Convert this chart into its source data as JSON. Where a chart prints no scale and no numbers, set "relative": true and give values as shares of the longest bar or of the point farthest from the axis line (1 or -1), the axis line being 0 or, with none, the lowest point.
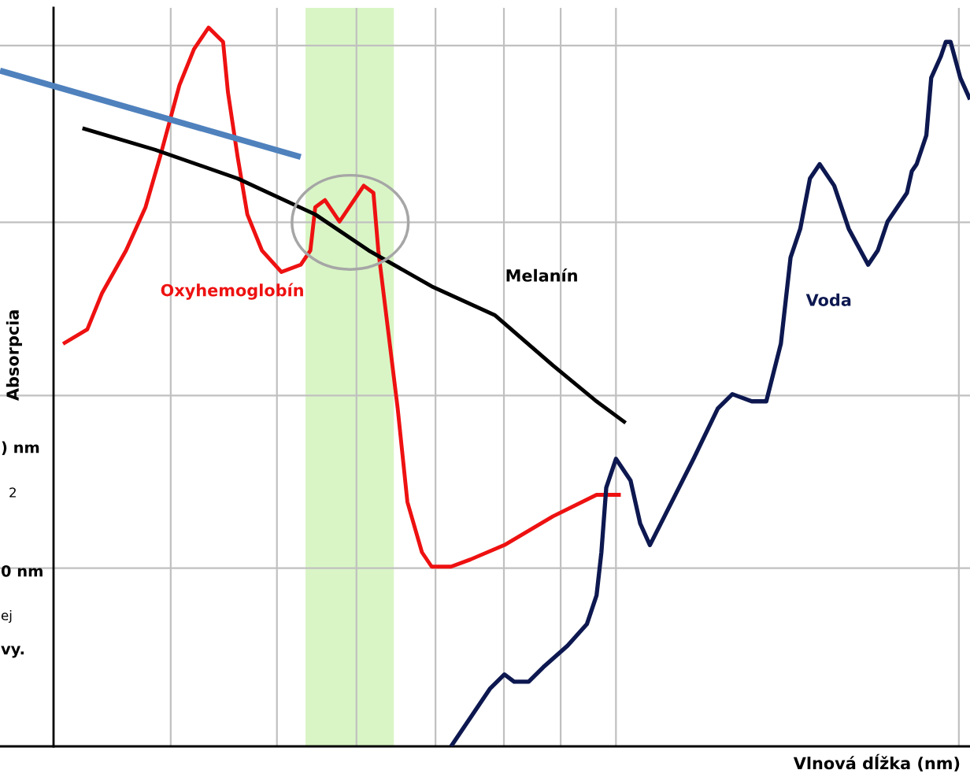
{
  "chart_data": {
    "type": "line",
    "relative": true,
    "xlabel": "Vlnová dĺžka (nm)",
    "ylabel": "Absorpcia",
    "categories": [
      null,
      null,
      null,
      null,
      null,
      null,
      null,
      null,
      null,
      null,
      null,
      null,
      null,
      null,
      null,
      null,
      null,
      null,
      null,
      null,
      null,
      null,
      null,
      null,
      null,
      null,
      null,
      null,
      null,
      null,
      null,
      null,
      null,
      null,
      null,
      null,
      null,
      null,
      null,
      null,
      null,
      null,
      null,
      null,
      null,
      null,
      null,
      null,
      null,
      null,
      null,
      null,
      null,
      null,
      null,
      null,
      null,
      null,
      null,
      null,
      null,
      null,
      null,
      null,
      null,
      null,
      null,
      null,
      null,
      null,
      null,
      null,
      null,
      null,
      null,
      null,
      null,
      null,
      null,
      null,
      null,
      null,
      null,
      null,
      null,
      null,
      null,
      null,
      null,
      null,
      null,
      null,
      null,
      null,
      null,
      null,
      null,
      null,
      null,
      null,
      null,
      null,
      null,
      null,
      null,
      null,
      null,
      null,
      null,
      null,
      null,
      null,
      null,
      null,
      null,
      null,
      null,
      null,
      null,
      null,
      null,
      null,
      null,
      null,
      null,
      null,
      null,
      null,
      null,
      null,
      null,
      null,
      null,
      null,
      null,
      null,
      null,
      null,
      null,
      null,
      null,
      null,
      null,
      null,
      null,
      null,
      null,
      null,
      null,
      null,
      null,
      null,
      null,
      null,
      null,
      null,
      null,
      null,
      null,
      null,
      null,
      null,
      null,
      null,
      null,
      null,
      null,
      null,
      null,
      null,
      null,
      null,
      null,
      null,
      null,
      null,
      null,
      null,
      null,
      null,
      null,
      null,
      null,
      null,
      null,
      null,
      null,
      null,
      null,
      null,
      null,
      null,
      null,
      null,
      null,
      null,
      null,
      null,
      null,
      null,
      null
    ],
    "ref_lines": [
      {
        "axis": "y",
        "value": 0.248,
        "color": "#c0c0c0"
      },
      {
        "axis": "y",
        "value": 0.488,
        "color": "#c0c0c0"
      },
      {
        "axis": "y",
        "value": 0.729,
        "color": "#c0c0c0"
      },
      {
        "axis": "y",
        "value": 0.975,
        "color": "#c0c0c0"
      }
    ],
    "series": [
      {
        "name": "Oxyhemoglobín",
        "color": "#ee1111",
        "values": [
          null,
          null,
          null,
          null,
          null,
          null,
          null,
          null,
          null,
          null,
          null,
          null,
          null,
          0.56,
          null,
          null,
          null,
          null,
          0.58,
          null,
          null,
          0.63,
          null,
          null,
          null,
          null,
          0.69,
          null,
          null,
          null,
          0.75,
          null,
          null,
          0.82,
          null,
          null,
          null,
          0.92,
          null,
          null,
          0.97,
          null,
          null,
          1.0,
          null,
          null,
          0.98,
          0.91,
          null,
          0.82,
          null,
          0.74,
          null,
          null,
          0.69,
          null,
          null,
          null,
          0.66,
          null,
          null,
          null,
          0.67,
          null,
          0.69,
          0.75,
          null,
          0.76,
          null,
          null,
          0.73,
          null,
          0.75,
          null,
          null,
          0.78,
          null,
          0.77,
          0.69,
          null,
          0.58,
          null,
          0.47,
          null,
          0.34,
          null,
          null,
          0.27,
          null,
          0.25,
          null,
          null,
          null,
          0.25,
          null,
          null,
          null,
          0.26,
          null,
          null,
          null,
          null,
          null,
          null,
          0.28,
          null,
          null,
          null,
          null,
          null,
          null,
          null,
          null,
          null,
          0.32,
          null,
          null,
          null,
          null,
          null,
          null,
          null,
          null,
          0.35,
          null,
          null,
          null,
          null,
          0.35,
          null,
          null,
          null,
          null,
          null,
          null,
          null,
          null,
          null,
          null,
          null,
          null,
          null,
          null,
          null,
          null,
          null,
          null,
          null,
          null,
          null,
          null,
          null,
          null,
          null,
          null,
          null,
          null,
          null,
          null,
          null,
          null,
          null,
          null,
          null,
          null,
          null,
          null,
          null,
          null,
          null,
          null,
          null,
          null,
          null,
          null,
          null,
          null,
          null,
          null,
          null,
          null,
          null,
          null,
          null,
          null,
          null,
          null,
          null,
          null,
          null,
          null,
          null,
          null,
          null,
          null,
          null,
          null,
          null,
          null,
          null,
          null
        ]
      },
      {
        "name": "Melanín",
        "color": "#000000",
        "values": [
          null,
          null,
          null,
          null,
          null,
          null,
          null,
          null,
          null,
          null,
          null,
          null,
          null,
          null,
          null,
          null,
          null,
          0.86,
          null,
          null,
          null,
          null,
          null,
          null,
          null,
          null,
          null,
          null,
          null,
          null,
          null,
          null,
          0.83,
          null,
          null,
          null,
          null,
          null,
          null,
          null,
          null,
          null,
          null,
          null,
          null,
          null,
          null,
          null,
          null,
          0.79,
          null,
          null,
          null,
          null,
          null,
          null,
          null,
          null,
          null,
          null,
          null,
          null,
          null,
          null,
          null,
          0.74,
          null,
          null,
          null,
          null,
          null,
          null,
          null,
          null,
          null,
          null,
          0.69,
          null,
          null,
          null,
          null,
          null,
          null,
          null,
          null,
          null,
          null,
          null,
          null,
          0.64,
          null,
          null,
          null,
          null,
          null,
          null,
          null,
          null,
          null,
          null,
          null,
          null,
          0.6,
          null,
          null,
          null,
          null,
          null,
          null,
          null,
          null,
          null,
          null,
          null,
          0.53,
          null,
          null,
          null,
          null,
          null,
          null,
          null,
          null,
          0.48,
          null,
          null,
          null,
          null,
          null,
          0.45,
          null,
          null,
          null,
          null,
          null,
          null,
          null,
          null,
          null,
          null,
          null,
          null,
          null,
          null,
          null,
          null,
          null,
          null,
          null,
          null,
          null,
          null,
          null,
          null,
          null,
          null,
          null,
          null,
          null,
          null,
          null,
          null,
          null,
          null,
          null,
          null,
          null,
          null,
          null,
          null,
          null,
          null,
          null,
          null,
          null,
          null,
          null,
          null,
          null,
          null,
          null,
          null,
          null,
          null,
          null,
          null,
          null,
          null,
          null,
          null,
          null,
          null,
          null,
          null,
          null,
          null,
          null,
          null,
          null,
          null,
          null
        ]
      },
      {
        "name": "Voda",
        "color": "#0d1850",
        "values": [
          null,
          null,
          null,
          null,
          null,
          null,
          null,
          null,
          null,
          null,
          null,
          null,
          null,
          null,
          null,
          null,
          null,
          null,
          null,
          null,
          null,
          null,
          null,
          null,
          null,
          null,
          null,
          null,
          null,
          null,
          null,
          null,
          null,
          null,
          null,
          null,
          null,
          null,
          null,
          null,
          null,
          null,
          null,
          null,
          null,
          null,
          null,
          null,
          null,
          null,
          null,
          null,
          null,
          null,
          null,
          null,
          null,
          null,
          null,
          null,
          null,
          null,
          null,
          null,
          null,
          null,
          null,
          null,
          null,
          null,
          null,
          null,
          null,
          null,
          null,
          null,
          null,
          null,
          null,
          null,
          null,
          null,
          null,
          null,
          null,
          null,
          null,
          null,
          null,
          null,
          null,
          null,
          null,
          0.0,
          null,
          null,
          null,
          0.04,
          null,
          null,
          null,
          0.08,
          null,
          null,
          0.1,
          null,
          0.09,
          null,
          null,
          0.09,
          null,
          null,
          0.11,
          null,
          null,
          null,
          null,
          0.14,
          null,
          null,
          null,
          0.17,
          null,
          0.21,
          0.27,
          0.36,
          null,
          0.4,
          null,
          null,
          0.37,
          null,
          0.31,
          null,
          0.28,
          null,
          null,
          0.32,
          null,
          null,
          null,
          null,
          null,
          0.4,
          null,
          null,
          null,
          null,
          0.47,
          null,
          null,
          0.49,
          null,
          null,
          null,
          0.48,
          null,
          null,
          0.48,
          null,
          null,
          0.56,
          null,
          0.68,
          null,
          0.72,
          null,
          0.79,
          null,
          0.81,
          null,
          null,
          0.78,
          null,
          null,
          0.72,
          null,
          null,
          null,
          0.67,
          null,
          0.69,
          null,
          0.73,
          null,
          null,
          null,
          0.77,
          0.8,
          0.81,
          null,
          0.85,
          0.93,
          null,
          0.96,
          0.98,
          0.98,
          null,
          0.93,
          null,
          0.9
        ]
      },
      {
        "color": "#4f81bd",
        "values": [
          0.94,
          null,
          null,
          null,
          null,
          null,
          null,
          null,
          null,
          null,
          null,
          null,
          null,
          null,
          null,
          null,
          null,
          null,
          null,
          null,
          null,
          null,
          null,
          null,
          null,
          null,
          null,
          null,
          null,
          null,
          null,
          null,
          null,
          null,
          null,
          null,
          null,
          null,
          null,
          null,
          null,
          null,
          null,
          null,
          null,
          null,
          null,
          null,
          null,
          null,
          null,
          null,
          null,
          null,
          null,
          null,
          null,
          null,
          null,
          null,
          null,
          null,
          0.82,
          null,
          null,
          null,
          null,
          null,
          null,
          null,
          null,
          null,
          null,
          null,
          null,
          null,
          null,
          null,
          null,
          null,
          null,
          null,
          null,
          null,
          null,
          null,
          null,
          null,
          null,
          null,
          null,
          null,
          null,
          null,
          null,
          null,
          null,
          null,
          null,
          null,
          null,
          null,
          null,
          null,
          null,
          null,
          null,
          null,
          null,
          null,
          null,
          null,
          null,
          null,
          null,
          null,
          null,
          null,
          null,
          null,
          null,
          null,
          null,
          null,
          null,
          null,
          null,
          null,
          null,
          null,
          null,
          null,
          null,
          null,
          null,
          null,
          null,
          null,
          null,
          null,
          null,
          null,
          null,
          null,
          null,
          null,
          null,
          null,
          null,
          null,
          null,
          null,
          null,
          null,
          null,
          null,
          null,
          null,
          null,
          null,
          null,
          null,
          null,
          null,
          null,
          null,
          null,
          null,
          null,
          null,
          null,
          null,
          null,
          null,
          null,
          null,
          null,
          null,
          null,
          null,
          null,
          null,
          null,
          null,
          null,
          null,
          null,
          null,
          null,
          null,
          null,
          null,
          null,
          null,
          null,
          null,
          null,
          null,
          null,
          null,
          null
        ]
      }
    ],
    "annotations": [
      ") nm",
      "2",
      "0 nm",
      "ej",
      "vy."
    ]
  }
}
